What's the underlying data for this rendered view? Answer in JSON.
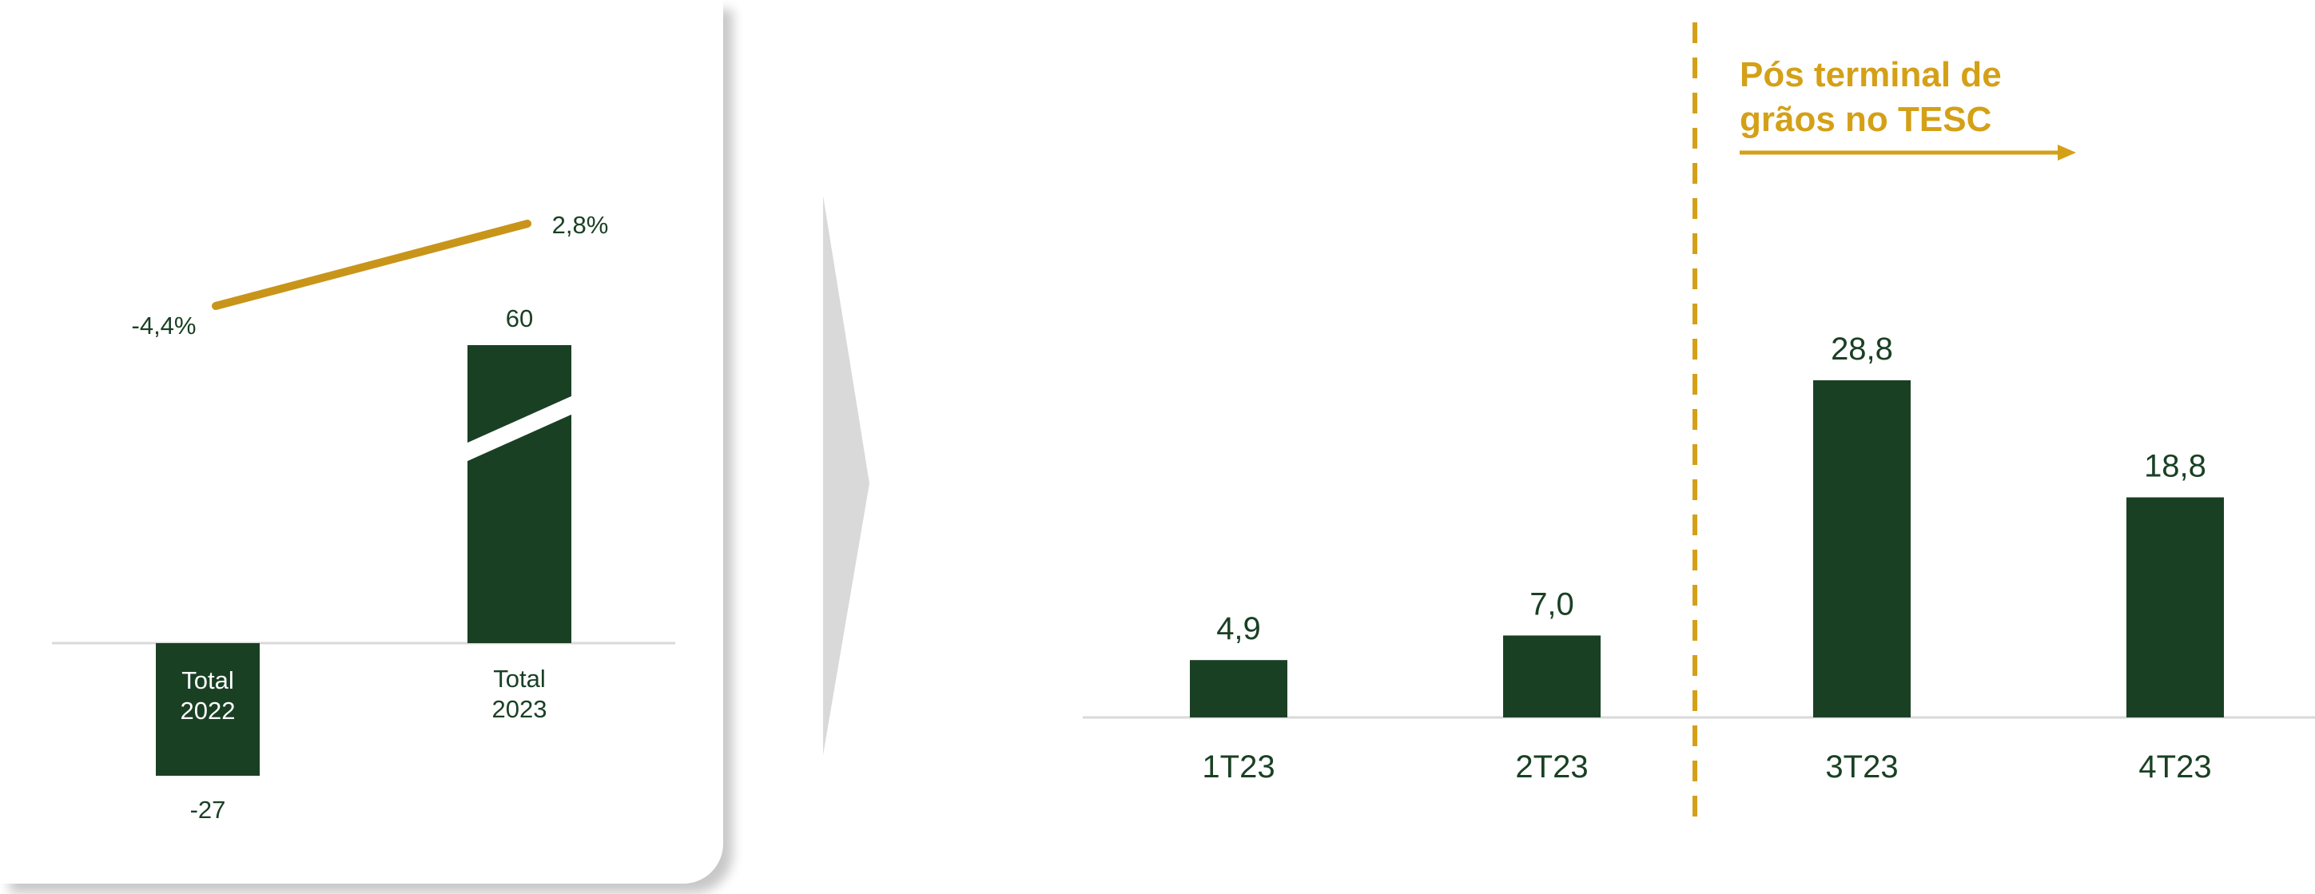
{
  "colors": {
    "bar": "#1a4024",
    "line": "#c8951a",
    "annotation": "#d4a017",
    "axis": "#d9d9d9",
    "text": "#1a4024",
    "arrow_shape": "#d9d9d9"
  },
  "chart_data": [
    {
      "type": "bar",
      "categories": [
        "Total\n2022",
        "Total\n2023"
      ],
      "values": [
        -27,
        60
      ],
      "value_labels": [
        "-27",
        "60"
      ],
      "axis_break_on": "Total\n2023",
      "overlay_line": {
        "values": [
          -4.4,
          2.8
        ],
        "labels": [
          "-4,4%",
          "2,8%"
        ]
      }
    },
    {
      "type": "bar",
      "categories": [
        "1T23",
        "2T23",
        "3T23",
        "4T23"
      ],
      "values": [
        4.9,
        7.0,
        28.8,
        18.8
      ],
      "value_labels": [
        "4,9",
        "7,0",
        "28,8",
        "18,8"
      ],
      "ylim": [
        0,
        30
      ],
      "annotation": {
        "text_line1": "Pós terminal de",
        "text_line2": "grãos no TESC",
        "divider_after": "2T23"
      }
    }
  ]
}
